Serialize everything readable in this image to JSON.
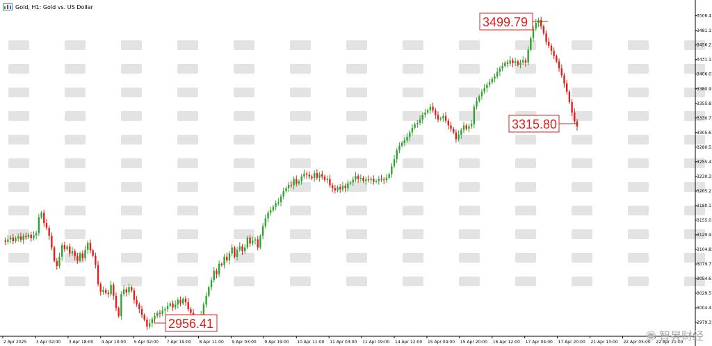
{
  "window": {
    "title": "Gold, H1:  Gold vs. US Dollar",
    "icon": "chart-window-icon",
    "colors": {
      "bull": "#2fa52f",
      "bear": "#e0201b",
      "callout": "#e0201b",
      "axis": "#000000",
      "watermark_tiles": "#e3e3e3",
      "background": "#ffffff"
    }
  },
  "watermark": {
    "text": "智昇财经",
    "icon": "weibo-icon"
  },
  "chart_data": {
    "type": "candlestick",
    "symbol": "Gold",
    "timeframe": "H1",
    "y_axis": {
      "range": [
        2965,
        3512
      ],
      "tick_labels": [
        "3506.41",
        "3481.11",
        "3456.21",
        "3431.11",
        "3406.01",
        "3380.91",
        "3355.81",
        "3330.71",
        "3305.61",
        "3280.51",
        "3255.41",
        "3230.31",
        "3205.21",
        "3180.11",
        "3155.01",
        "3129.91",
        "3104.81",
        "3079.71",
        "3054.61",
        "3029.51",
        "3004.41",
        "2979.31"
      ]
    },
    "x_axis": {
      "tick_labels": [
        "2 Apr 2025",
        "3 Apr 02:00",
        "3 Apr 18:00",
        "4 Apr 10:00",
        "5 Apr 02:00",
        "7 Apr 19:00",
        "8 Apr 11:00",
        "9 Apr 03:00",
        "9 Apr 19:00",
        "10 Apr 11:00",
        "11 Apr 03:00",
        "11 Apr 19:00",
        "14 Apr 12:00",
        "15 Apr 04:00",
        "15 Apr 20:00",
        "16 Apr 12:00",
        "17 Apr 04:00",
        "17 Apr 20:00",
        "21 Apr 13:00",
        "22 Apr 05:00",
        "22 Apr 21:00"
      ]
    },
    "callouts": [
      {
        "label": "3499.79",
        "value": 3499.79
      },
      {
        "label": "3315.80",
        "value": 3315.8
      },
      {
        "label": "2956.41",
        "value": 2956.41
      }
    ],
    "close_path": [
      3120,
      3118,
      3122,
      3125,
      3119,
      3124,
      3127,
      3121,
      3128,
      3126,
      3130,
      3124,
      3129,
      3133,
      3160,
      3168,
      3150,
      3142,
      3128,
      3108,
      3085,
      3076,
      3092,
      3112,
      3105,
      3110,
      3098,
      3102,
      3093,
      3085,
      3098,
      3090,
      3104,
      3116,
      3103,
      3094,
      3078,
      3045,
      3032,
      3035,
      3030,
      3028,
      3044,
      3025,
      3004,
      2990,
      3028,
      3036,
      3031,
      3040,
      3034,
      3018,
      3010,
      3002,
      2992,
      2984,
      2972,
      2978,
      2985,
      2990,
      2996,
      2994,
      3000,
      3002,
      3008,
      3012,
      3005,
      3010,
      3018,
      3012,
      3020,
      3014,
      3002,
      2996,
      2990,
      2984,
      2988,
      2992,
      3010,
      3025,
      3040,
      3052,
      3068,
      3062,
      3080,
      3078,
      3092,
      3086,
      3098,
      3108,
      3092,
      3104,
      3110,
      3102,
      3108,
      3125,
      3115,
      3120,
      3122,
      3108,
      3128,
      3145,
      3158,
      3168,
      3172,
      3178,
      3184,
      3186,
      3196,
      3205,
      3210,
      3216,
      3215,
      3226,
      3218,
      3222,
      3230,
      3235,
      3233,
      3230,
      3227,
      3236,
      3228,
      3234,
      3230,
      3224,
      3226,
      3215,
      3210,
      3206,
      3212,
      3208,
      3214,
      3210,
      3218,
      3220,
      3225,
      3231,
      3226,
      3228,
      3222,
      3225,
      3224,
      3226,
      3221,
      3222,
      3226,
      3225,
      3224,
      3228,
      3234,
      3248,
      3260,
      3275,
      3283,
      3288,
      3292,
      3298,
      3306,
      3314,
      3320,
      3322,
      3328,
      3336,
      3340,
      3344,
      3350,
      3344,
      3336,
      3328,
      3330,
      3334,
      3326,
      3318,
      3312,
      3306,
      3294,
      3302,
      3310,
      3318,
      3312,
      3316,
      3320,
      3350,
      3360,
      3368,
      3376,
      3382,
      3388,
      3392,
      3398,
      3402,
      3410,
      3416,
      3420,
      3426,
      3424,
      3430,
      3425,
      3428,
      3422,
      3426,
      3430,
      3426,
      3448,
      3468,
      3484,
      3494,
      3499,
      3488,
      3476,
      3462,
      3455,
      3446,
      3437,
      3428,
      3416,
      3404,
      3390,
      3376,
      3358,
      3340,
      3325,
      3316
    ]
  }
}
